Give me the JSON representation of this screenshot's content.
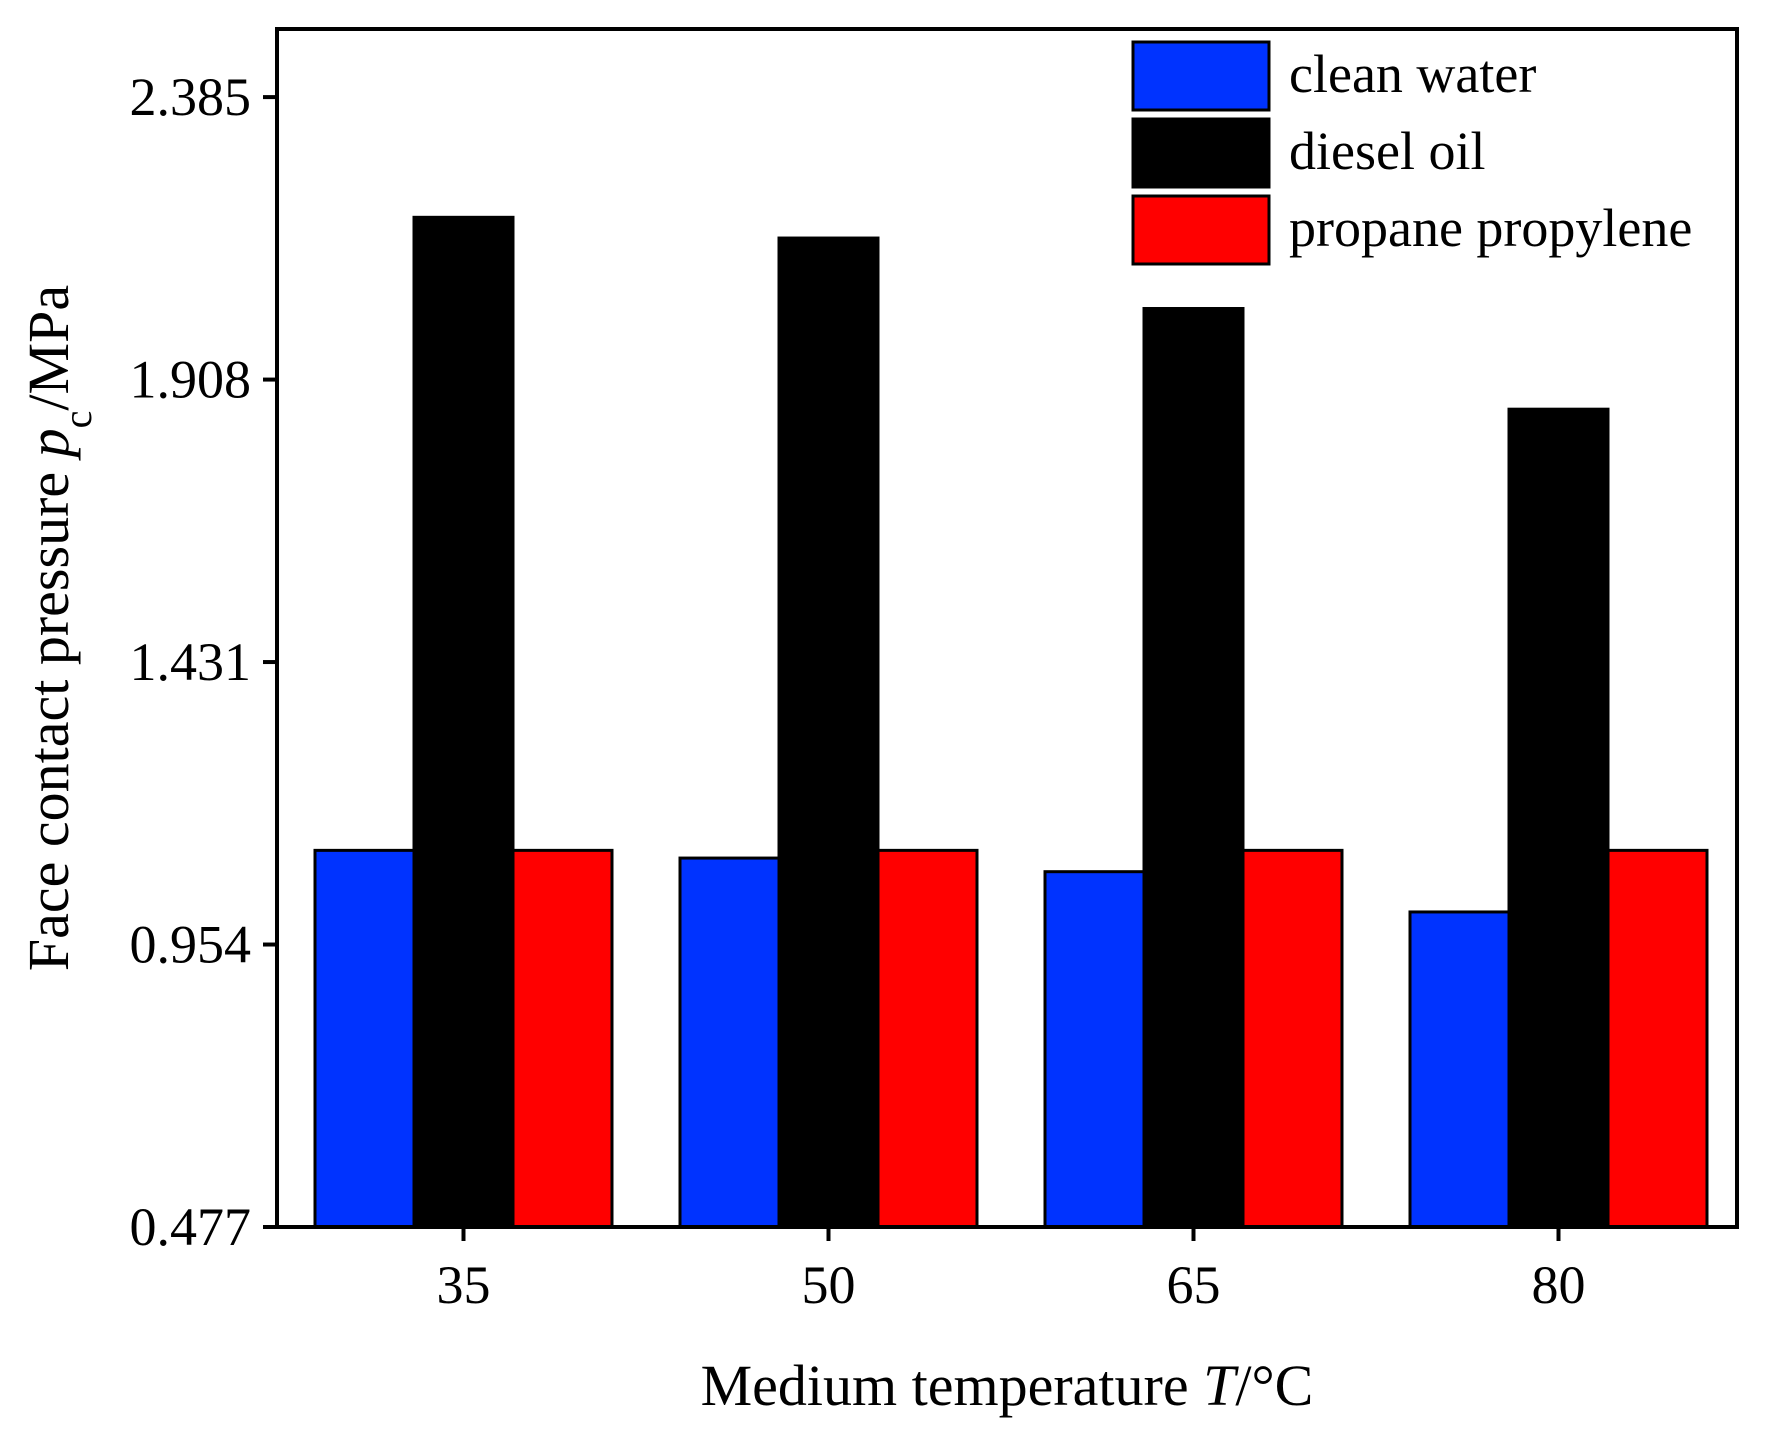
{
  "chart_data": {
    "type": "bar",
    "categories": [
      "35",
      "50",
      "65",
      "80"
    ],
    "series": [
      {
        "name": "clean water",
        "color": "#0033ff",
        "values": [
          1.113,
          1.1,
          1.077,
          1.009
        ]
      },
      {
        "name": "diesel oil",
        "color": "#000000",
        "values": [
          2.182,
          2.147,
          2.028,
          1.858
        ]
      },
      {
        "name": "propane propylene",
        "color": "#ff0000",
        "values": [
          1.113,
          1.113,
          1.113,
          1.113
        ]
      }
    ],
    "yticks": [
      "0.477",
      "0.954",
      "1.431",
      "1.908",
      "2.385"
    ],
    "ylim": [
      0.477,
      2.5
    ],
    "xlabel": {
      "prefix": "Medium temperature ",
      "symbol": "T",
      "suffix": "/°C"
    },
    "ylabel": {
      "prefix": "Face contact pressure ",
      "symbol": "p",
      "subscript": "c",
      "suffix": "/MPa"
    },
    "legend_position": "top-right",
    "grid": false
  }
}
